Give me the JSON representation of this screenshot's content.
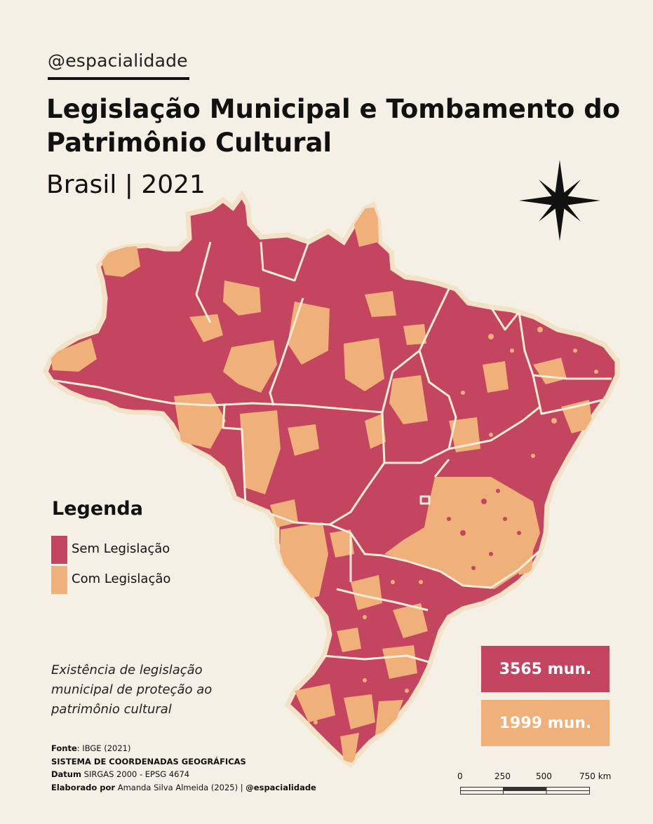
{
  "header": {
    "handle": "@espacialidade",
    "title": "Legislação Municipal e Tombamento do Patrimônio Cultural",
    "subtitle": "Brasil | 2021"
  },
  "legend": {
    "title": "Legenda",
    "items": [
      {
        "label": "Sem Legislação",
        "color": "#c4455f"
      },
      {
        "label": "Com Legislação",
        "color": "#f0b07a"
      }
    ]
  },
  "caption": "Existência de legislação municipal de proteção ao patrimônio cultural",
  "counts": [
    {
      "label": "3565 mun.",
      "color": "#c4455f"
    },
    {
      "label": "1999 mun.",
      "color": "#f0b07a"
    }
  ],
  "footer": {
    "source_key": "Fonte",
    "source_value": ": IBGE (2021)",
    "crs_heading": "SISTEMA DE COORDENADAS GEOGRÁFICAS",
    "datum_key": "Datum",
    "datum_value": " SIRGAS 2000 - EPSG 4674",
    "author_key": "Elaborado por",
    "author_value": " Amanda Silva Almeida (2025) | ",
    "author_handle": "@espacialidade"
  },
  "scale_bar": {
    "labels": [
      "0",
      "250",
      "500",
      "750 km"
    ]
  },
  "map": {
    "region": "Brasil",
    "colors": {
      "without": "#c4455f",
      "with": "#f0b07a",
      "border": "#f6ecd8"
    }
  }
}
